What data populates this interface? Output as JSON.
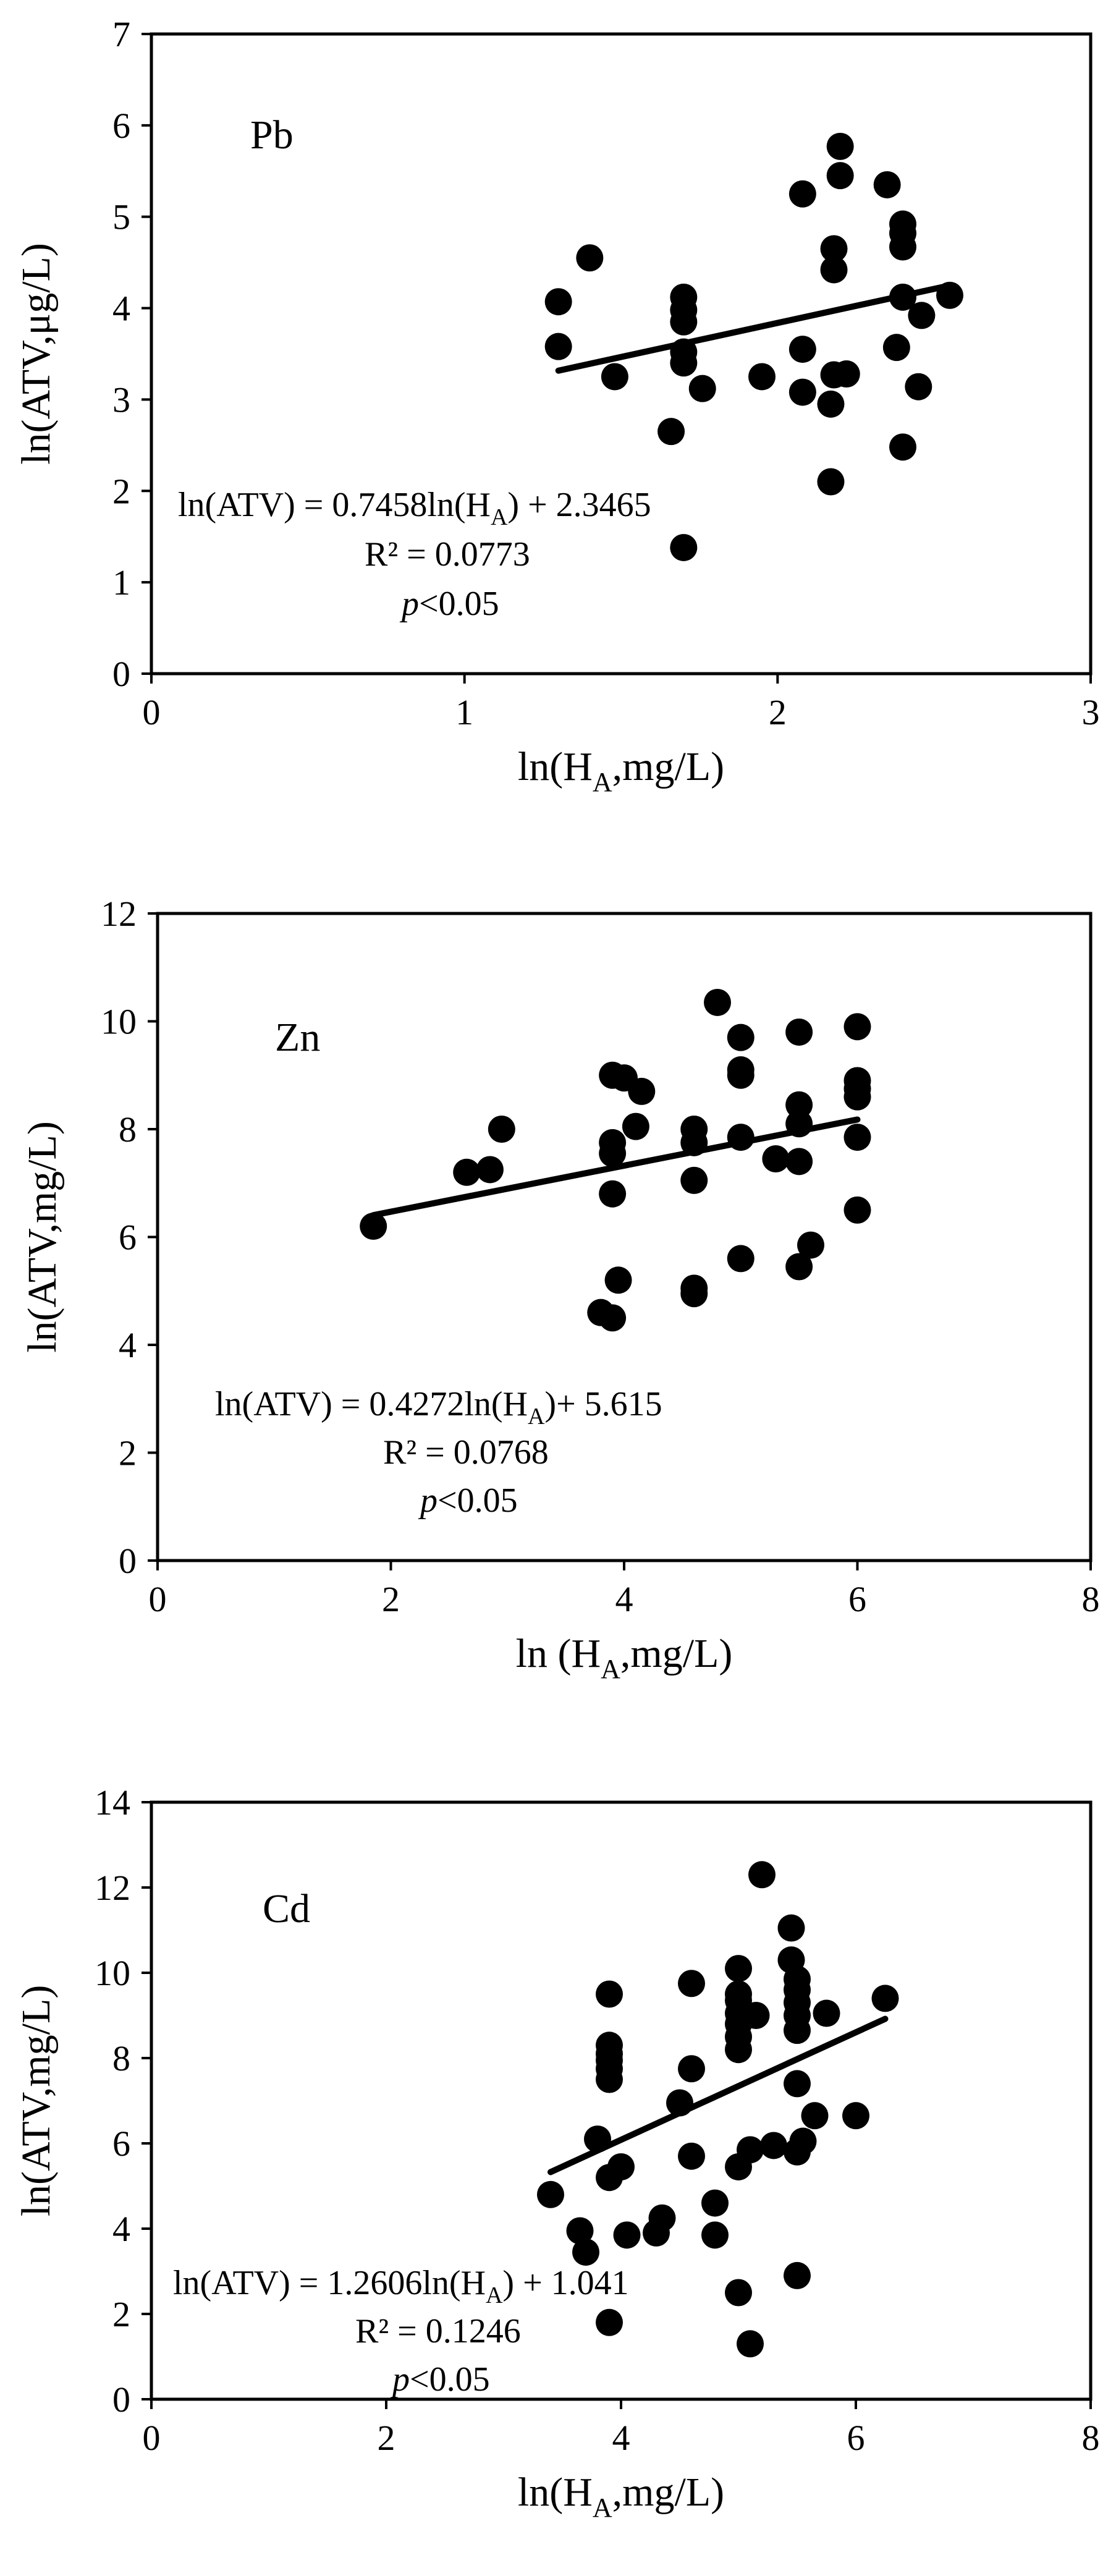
{
  "chart_data": [
    {
      "type": "scatter",
      "panel_label": "Pb",
      "xlabel": {
        "main": "ln(H",
        "sub": "A",
        "rest": ",mg/L)"
      },
      "ylabel": "ln(ATV,μg/L)",
      "xlim": [
        0,
        3
      ],
      "ylim": [
        0,
        7
      ],
      "xticks": [
        "0",
        "1",
        "2",
        "3"
      ],
      "yticks": [
        "0",
        "1",
        "2",
        "3",
        "4",
        "5",
        "6",
        "7"
      ],
      "equation": {
        "pre": "ln(ATV)  = 0.7458ln(H",
        "sub": "A",
        "post": ") + 2.3465"
      },
      "r2": "R² = 0.0773",
      "pval": {
        "italic": "p",
        "rest": "<0.05"
      },
      "fit": {
        "slope": 0.7458,
        "intercept": 2.3465,
        "x_range": [
          1.3,
          2.55
        ]
      },
      "points": [
        [
          1.3,
          4.07
        ],
        [
          1.3,
          3.58
        ],
        [
          1.4,
          4.55
        ],
        [
          1.48,
          3.25
        ],
        [
          1.66,
          2.65
        ],
        [
          1.7,
          1.38
        ],
        [
          1.7,
          4.12
        ],
        [
          1.7,
          3.98
        ],
        [
          1.7,
          3.85
        ],
        [
          1.7,
          3.52
        ],
        [
          1.7,
          3.4
        ],
        [
          1.76,
          3.12
        ],
        [
          1.95,
          3.25
        ],
        [
          2.08,
          5.25
        ],
        [
          2.08,
          3.55
        ],
        [
          2.08,
          3.08
        ],
        [
          2.17,
          2.95
        ],
        [
          2.17,
          2.1
        ],
        [
          2.18,
          4.65
        ],
        [
          2.18,
          4.42
        ],
        [
          2.18,
          3.27
        ],
        [
          2.2,
          5.77
        ],
        [
          2.2,
          5.45
        ],
        [
          2.22,
          3.28
        ],
        [
          2.35,
          5.35
        ],
        [
          2.38,
          3.57
        ],
        [
          2.4,
          4.92
        ],
        [
          2.4,
          4.82
        ],
        [
          2.4,
          4.67
        ],
        [
          2.4,
          4.12
        ],
        [
          2.4,
          2.48
        ],
        [
          2.45,
          3.14
        ],
        [
          2.46,
          3.92
        ],
        [
          2.55,
          4.14
        ]
      ]
    },
    {
      "type": "scatter",
      "panel_label": "Zn",
      "xlabel": {
        "main": "ln (H",
        "sub": "A",
        "rest": ",mg/L)"
      },
      "ylabel": "ln(ATV,mg/L)",
      "xlim": [
        0,
        8
      ],
      "ylim": [
        0,
        12
      ],
      "xticks": [
        "0",
        "2",
        "4",
        "6",
        "8"
      ],
      "yticks": [
        "0",
        "2",
        "4",
        "6",
        "8",
        "10",
        "12"
      ],
      "equation": {
        "pre": "ln(ATV) = 0.4272ln(H",
        "sub": "A",
        "post": ")+ 5.615"
      },
      "r2": "R² = 0.0768",
      "pval": {
        "italic": "p",
        "rest": "<0.05"
      },
      "fit": {
        "slope": 0.4272,
        "intercept": 5.615,
        "x_range": [
          1.85,
          6.0
        ]
      },
      "points": [
        [
          1.85,
          6.2
        ],
        [
          2.65,
          7.2
        ],
        [
          2.85,
          7.25
        ],
        [
          2.95,
          8.0
        ],
        [
          3.8,
          4.6
        ],
        [
          3.9,
          4.5
        ],
        [
          3.9,
          6.8
        ],
        [
          3.9,
          7.55
        ],
        [
          3.9,
          7.75
        ],
        [
          3.9,
          9.0
        ],
        [
          3.95,
          5.2
        ],
        [
          4.0,
          8.95
        ],
        [
          4.1,
          8.05
        ],
        [
          4.15,
          8.7
        ],
        [
          4.6,
          4.95
        ],
        [
          4.6,
          5.05
        ],
        [
          4.6,
          7.05
        ],
        [
          4.6,
          7.75
        ],
        [
          4.6,
          8.0
        ],
        [
          4.8,
          10.35
        ],
        [
          5.0,
          5.6
        ],
        [
          5.0,
          7.85
        ],
        [
          5.0,
          9.0
        ],
        [
          5.0,
          9.1
        ],
        [
          5.0,
          9.7
        ],
        [
          5.3,
          7.45
        ],
        [
          5.5,
          5.45
        ],
        [
          5.5,
          7.4
        ],
        [
          5.5,
          8.1
        ],
        [
          5.5,
          8.45
        ],
        [
          5.5,
          9.8
        ],
        [
          5.6,
          5.85
        ],
        [
          6.0,
          6.5
        ],
        [
          6.0,
          7.85
        ],
        [
          6.0,
          8.6
        ],
        [
          6.0,
          8.75
        ],
        [
          6.0,
          8.9
        ],
        [
          6.0,
          9.9
        ]
      ]
    },
    {
      "type": "scatter",
      "panel_label": "Cd",
      "xlabel": {
        "main": "ln(H",
        "sub": "A",
        "rest": ",mg/L)"
      },
      "ylabel": "ln(ATV,mg/L)",
      "xlim": [
        0,
        8
      ],
      "ylim": [
        0,
        14
      ],
      "xticks": [
        "0",
        "2",
        "4",
        "6",
        "8"
      ],
      "yticks": [
        "0",
        "2",
        "4",
        "6",
        "8",
        "10",
        "12",
        "14"
      ],
      "equation": {
        "pre": "ln(ATV)  = 1.2606ln(H",
        "sub": "A",
        "post": ") + 1.041"
      },
      "r2": "R² = 0.1246",
      "pval": {
        "italic": "p",
        "rest": "<0.05"
      },
      "fit": {
        "slope": 1.2606,
        "intercept": 1.041,
        "x_range": [
          3.4,
          6.25
        ]
      },
      "points": [
        [
          3.4,
          4.8
        ],
        [
          3.65,
          3.95
        ],
        [
          3.7,
          3.45
        ],
        [
          3.8,
          6.1
        ],
        [
          3.9,
          1.8
        ],
        [
          3.9,
          5.2
        ],
        [
          3.9,
          7.5
        ],
        [
          3.9,
          7.75
        ],
        [
          3.9,
          7.95
        ],
        [
          3.9,
          8.1
        ],
        [
          3.9,
          8.3
        ],
        [
          3.9,
          9.5
        ],
        [
          4.0,
          5.45
        ],
        [
          4.05,
          3.85
        ],
        [
          4.3,
          3.9
        ],
        [
          4.35,
          4.25
        ],
        [
          4.5,
          6.95
        ],
        [
          4.6,
          5.7
        ],
        [
          4.6,
          7.75
        ],
        [
          4.6,
          9.75
        ],
        [
          4.8,
          3.85
        ],
        [
          4.8,
          4.6
        ],
        [
          5.0,
          2.5
        ],
        [
          5.0,
          5.45
        ],
        [
          5.0,
          8.2
        ],
        [
          5.0,
          8.5
        ],
        [
          5.0,
          8.8
        ],
        [
          5.0,
          9.05
        ],
        [
          5.0,
          9.35
        ],
        [
          5.0,
          9.5
        ],
        [
          5.0,
          10.1
        ],
        [
          5.1,
          1.3
        ],
        [
          5.1,
          5.85
        ],
        [
          5.15,
          9.0
        ],
        [
          5.2,
          12.3
        ],
        [
          5.3,
          5.95
        ],
        [
          5.45,
          10.3
        ],
        [
          5.45,
          11.05
        ],
        [
          5.5,
          2.9
        ],
        [
          5.5,
          5.8
        ],
        [
          5.5,
          7.4
        ],
        [
          5.5,
          8.65
        ],
        [
          5.5,
          9.0
        ],
        [
          5.5,
          9.3
        ],
        [
          5.5,
          9.6
        ],
        [
          5.5,
          9.85
        ],
        [
          5.55,
          6.05
        ],
        [
          5.65,
          6.65
        ],
        [
          5.75,
          9.05
        ],
        [
          6.0,
          6.65
        ],
        [
          6.25,
          9.4
        ]
      ]
    }
  ]
}
